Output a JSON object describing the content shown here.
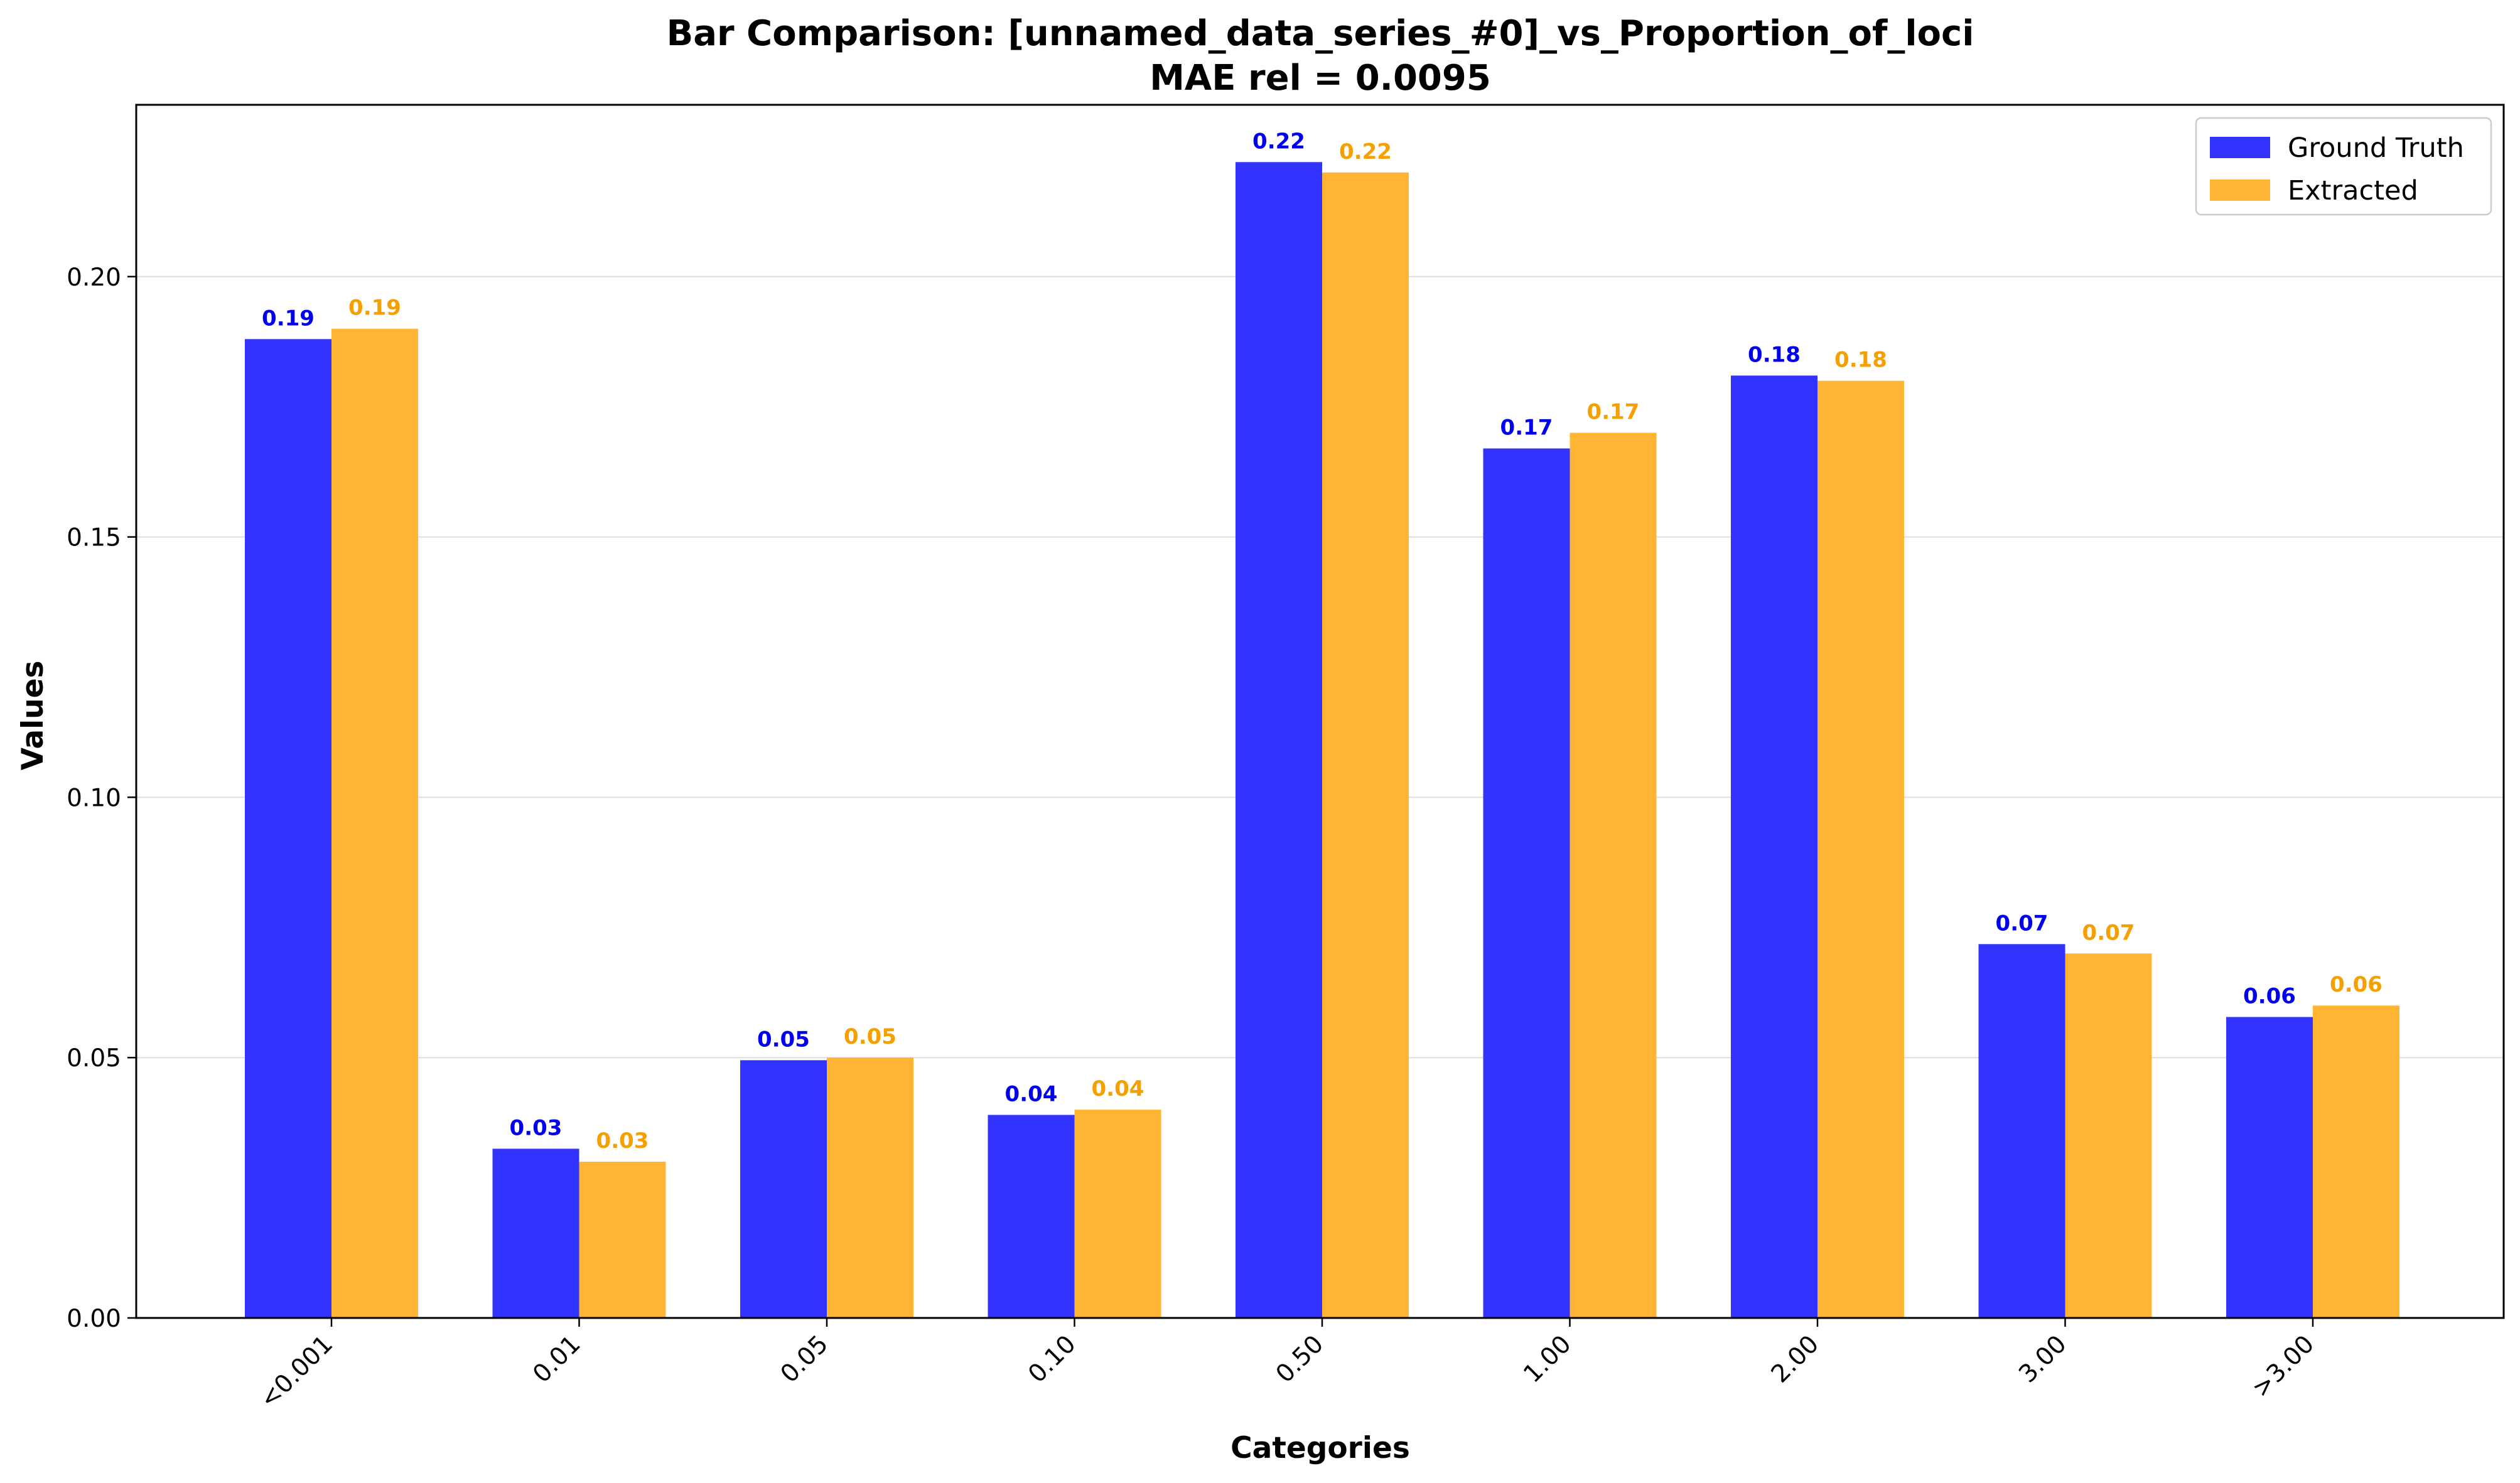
{
  "chart_data": {
    "type": "bar",
    "title": "Bar Comparison: [unnamed_data_series_#0]_vs_Proportion_of_loci",
    "subtitle": "MAE rel = 0.0095",
    "xlabel": "Categories",
    "ylabel": "Values",
    "categories": [
      "<0.001",
      "0.01",
      "0.05",
      "0.10",
      "0.50",
      "1.00",
      "2.00",
      "3.00",
      ">3.00"
    ],
    "series": [
      {
        "name": "Ground Truth",
        "color": "#3333ff",
        "label_color": "#0000ee",
        "values": [
          0.188,
          0.0325,
          0.0495,
          0.039,
          0.222,
          0.167,
          0.181,
          0.0718,
          0.0578
        ],
        "labels": [
          "0.19",
          "0.03",
          "0.05",
          "0.04",
          "0.22",
          "0.17",
          "0.18",
          "0.07",
          "0.06"
        ]
      },
      {
        "name": "Extracted",
        "color": "#ffb533",
        "label_color": "#f5a000",
        "values": [
          0.19,
          0.03,
          0.05,
          0.04,
          0.22,
          0.17,
          0.18,
          0.07,
          0.06
        ],
        "labels": [
          "0.19",
          "0.03",
          "0.05",
          "0.04",
          "0.22",
          "0.17",
          "0.18",
          "0.07",
          "0.06"
        ]
      }
    ],
    "ylim": [
      0,
      0.233
    ],
    "yticks": [
      0.0,
      0.05,
      0.1,
      0.15,
      0.2
    ],
    "ytick_labels": [
      "0.00",
      "0.05",
      "0.10",
      "0.15",
      "0.20"
    ],
    "grid": "horizontal",
    "legend_position": "top-right"
  }
}
